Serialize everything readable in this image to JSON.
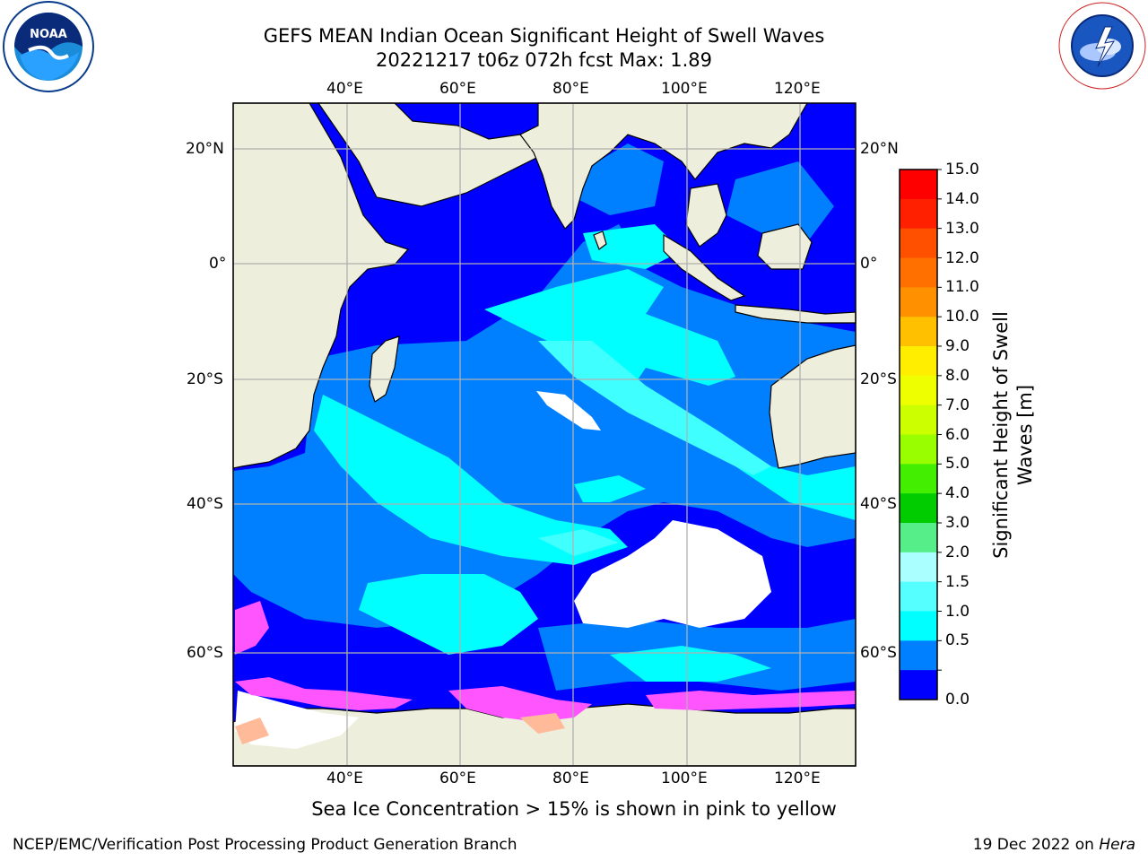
{
  "header": {
    "title_line1": "GEFS MEAN Indian Ocean Significant Height of Swell Waves",
    "title_line2": "20221217 t06z 072h fcst   Max: 1.89"
  },
  "map": {
    "lon_labels": [
      "40°E",
      "60°E",
      "80°E",
      "100°E",
      "120°E"
    ],
    "lat_labels": [
      "20°N",
      "0°",
      "20°S",
      "40°S",
      "60°S"
    ],
    "colors": {
      "land": "#eeeedd",
      "band_0_0_5": "#0000ff",
      "band_0_5_1_0": "#0080ff",
      "band_1_0_1_5": "#00ffff",
      "band_1_5_2_0": "#40ffff",
      "ice_white": "#ffffff",
      "ice_pink": "#ff55ff",
      "ice_peach": "#ffbb99"
    }
  },
  "colorbar": {
    "title": "Significant Height of Swell Waves [m]",
    "ticks": [
      "15.0",
      "14.0",
      "13.0",
      "12.0",
      "11.0",
      "10.0",
      "9.0",
      "8.0",
      "7.0",
      "6.0",
      "5.0",
      "4.0",
      "3.0",
      "2.0",
      "1.5",
      "1.0",
      "0.5",
      "0.0"
    ],
    "colors": [
      "#ff0000",
      "#ff2000",
      "#ff5000",
      "#ff7000",
      "#ff9000",
      "#ffc000",
      "#ffee00",
      "#eeff00",
      "#ccff00",
      "#99ff00",
      "#44ee00",
      "#00cc00",
      "#55ee88",
      "#aaffff",
      "#55ffff",
      "#00ffff",
      "#0080ff",
      "#0000ff"
    ]
  },
  "logos": {
    "left_icon": "noaa-logo",
    "right_icon": "nws-logo"
  },
  "footer": {
    "subtitle": "Sea Ice Concentration > 15% is shown in pink to yellow",
    "branch": "NCEP/EMC/Verification Post Processing Product Generation Branch",
    "date_prefix": "19 Dec 2022 on ",
    "date_machine": "Hera"
  }
}
